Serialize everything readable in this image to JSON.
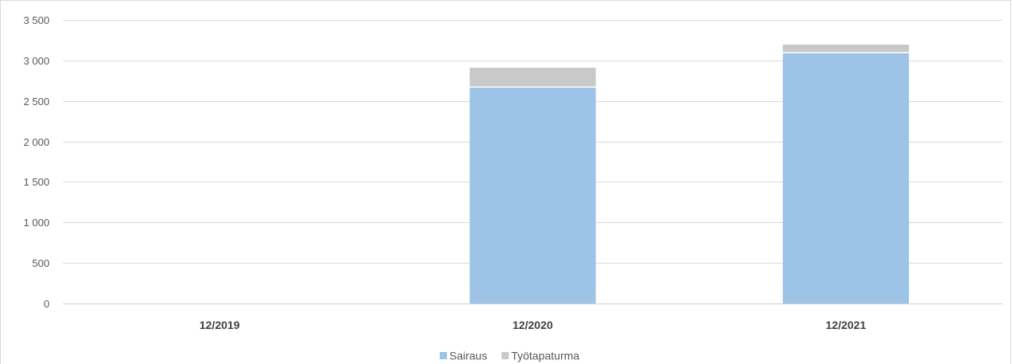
{
  "chart_data": {
    "type": "bar",
    "stacked": true,
    "categories": [
      "12/2019",
      "12/2020",
      "12/2021"
    ],
    "series": [
      {
        "name": "Sairaus",
        "values": [
          0,
          2670,
          3095
        ],
        "color": "#9dc3e6"
      },
      {
        "name": "Työtapaturma",
        "values": [
          0,
          240,
          100
        ],
        "color": "#c9c9c9"
      }
    ],
    "ylim": [
      0,
      3500
    ],
    "yticks": [
      0,
      500,
      1000,
      1500,
      2000,
      2500,
      3000,
      3500
    ],
    "ytick_labels": [
      "0",
      "500",
      "1 000",
      "1 500",
      "2 000",
      "2 500",
      "3 000",
      "3 500"
    ],
    "grid": true,
    "legend": "bottom",
    "title": "",
    "xlabel": "",
    "ylabel": ""
  }
}
